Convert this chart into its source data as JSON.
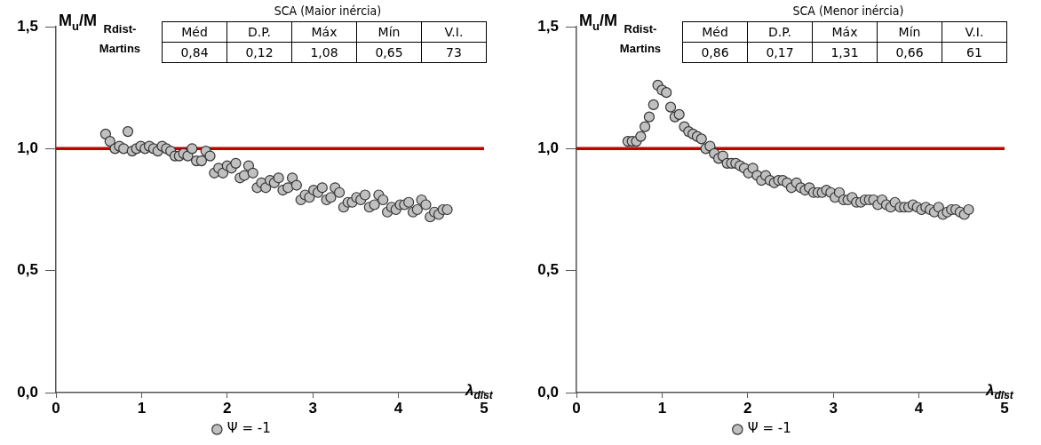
{
  "chart_data": [
    {
      "type": "scatter",
      "ylabel": "M$_{u}$/M$_{Rdist-Martins}$",
      "xlabel": "λ$_{dist}$",
      "xlim": [
        0,
        5
      ],
      "xticks": [
        0,
        1,
        2,
        3,
        4,
        5
      ],
      "ylim": [
        0,
        1.5
      ],
      "yticks": [
        {
          "value": 0,
          "label": "0,0"
        },
        {
          "value": 0.5,
          "label": "0,5"
        },
        {
          "value": 1,
          "label": "1,0"
        },
        {
          "value": 1.5,
          "label": "1,5"
        }
      ],
      "grid": false,
      "legend": "bottom",
      "marker": "circle",
      "ref_lines": [
        {
          "axis": "y",
          "value": 1,
          "color": "#c00000"
        }
      ],
      "annotations": [
        "SCA (Maior inércia)",
        "Méd",
        "D.P.",
        "Máx",
        "Mín",
        "V.I.",
        "0,84",
        "0,12",
        "1,08",
        "0,65",
        "73"
      ],
      "series": [
        {
          "name": "Ψ = -1",
          "color": "#c0c0c0",
          "x": [
            0.58,
            0.63,
            0.69,
            0.74,
            0.79,
            0.84,
            0.89,
            0.94,
            0.99,
            1.04,
            1.09,
            1.14,
            1.19,
            1.24,
            1.29,
            1.34,
            1.39,
            1.44,
            1.49,
            1.54,
            1.59,
            1.64,
            1.7,
            1.75,
            1.8,
            1.85,
            1.9,
            1.95,
            2.0,
            2.05,
            2.1,
            2.15,
            2.2,
            2.25,
            2.3,
            2.35,
            2.4,
            2.45,
            2.5,
            2.55,
            2.6,
            2.65,
            2.71,
            2.76,
            2.81,
            2.86,
            2.91,
            2.96,
            3.01,
            3.06,
            3.11,
            3.16,
            3.21,
            3.26,
            3.31,
            3.36,
            3.41,
            3.46,
            3.51,
            3.56,
            3.61,
            3.66,
            3.72,
            3.77,
            3.82,
            3.87,
            3.92,
            3.97,
            4.02,
            4.07,
            4.12,
            4.17,
            4.22,
            4.27,
            4.32,
            4.37,
            4.42,
            4.47,
            4.52,
            4.57
          ],
          "values": [
            1.06,
            1.03,
            1.0,
            1.01,
            1.0,
            1.07,
            0.99,
            1.0,
            1.01,
            1.0,
            1.01,
            1.0,
            0.99,
            1.01,
            1.0,
            0.99,
            0.97,
            0.97,
            0.98,
            0.97,
            1.0,
            0.95,
            0.95,
            0.99,
            0.97,
            0.9,
            0.92,
            0.9,
            0.93,
            0.92,
            0.94,
            0.88,
            0.89,
            0.93,
            0.9,
            0.84,
            0.86,
            0.84,
            0.87,
            0.86,
            0.88,
            0.83,
            0.84,
            0.88,
            0.85,
            0.79,
            0.81,
            0.8,
            0.83,
            0.82,
            0.84,
            0.79,
            0.8,
            0.84,
            0.82,
            0.76,
            0.78,
            0.78,
            0.8,
            0.79,
            0.81,
            0.76,
            0.77,
            0.81,
            0.79,
            0.74,
            0.76,
            0.75,
            0.77,
            0.77,
            0.78,
            0.74,
            0.75,
            0.79,
            0.77,
            0.72,
            0.74,
            0.73,
            0.75,
            0.75
          ]
        }
      ]
    },
    {
      "type": "scatter",
      "ylabel": "M$_{u}$/M$_{Rdist-Martins}$",
      "xlabel": "λ$_{dist}$",
      "xlim": [
        0,
        5
      ],
      "xticks": [
        0,
        1,
        2,
        3,
        4,
        5
      ],
      "ylim": [
        0,
        1.5
      ],
      "yticks": [
        {
          "value": 0,
          "label": "0,0"
        },
        {
          "value": 0.5,
          "label": "0,5"
        },
        {
          "value": 1,
          "label": "1,0"
        },
        {
          "value": 1.5,
          "label": "1,5"
        }
      ],
      "grid": false,
      "legend": "bottom",
      "marker": "circle",
      "ref_lines": [
        {
          "axis": "y",
          "value": 1,
          "color": "#c00000"
        }
      ],
      "annotations": [
        "SCA (Menor inércia)",
        "Méd",
        "D.P.",
        "Máx",
        "Mín",
        "V.I.",
        "0,86",
        "0,17",
        "1,31",
        "0,66",
        "61"
      ],
      "series": [
        {
          "name": "Ψ = -1",
          "color": "#c0c0c0",
          "x": [
            0.6,
            0.65,
            0.7,
            0.75,
            0.8,
            0.85,
            0.9,
            0.95,
            1.0,
            1.05,
            1.1,
            1.15,
            1.2,
            1.26,
            1.31,
            1.36,
            1.41,
            1.46,
            1.51,
            1.56,
            1.61,
            1.66,
            1.71,
            1.76,
            1.81,
            1.86,
            1.91,
            1.96,
            2.01,
            2.06,
            2.11,
            2.16,
            2.21,
            2.26,
            2.31,
            2.36,
            2.41,
            2.46,
            2.51,
            2.57,
            2.62,
            2.67,
            2.72,
            2.77,
            2.82,
            2.87,
            2.92,
            2.97,
            3.02,
            3.07,
            3.12,
            3.17,
            3.22,
            3.27,
            3.32,
            3.37,
            3.42,
            3.47,
            3.52,
            3.57,
            3.62,
            3.67,
            3.72,
            3.78,
            3.83,
            3.88,
            3.93,
            3.98,
            4.03,
            4.08,
            4.13,
            4.18,
            4.23,
            4.28,
            4.33,
            4.38,
            4.43,
            4.48,
            4.53,
            4.58
          ],
          "values": [
            1.03,
            1.03,
            1.03,
            1.05,
            1.09,
            1.13,
            1.18,
            1.26,
            1.24,
            1.23,
            1.17,
            1.13,
            1.14,
            1.09,
            1.07,
            1.06,
            1.05,
            1.04,
            1.0,
            1.01,
            0.98,
            0.96,
            0.97,
            0.94,
            0.94,
            0.94,
            0.93,
            0.92,
            0.9,
            0.92,
            0.89,
            0.87,
            0.89,
            0.87,
            0.86,
            0.87,
            0.87,
            0.86,
            0.84,
            0.86,
            0.84,
            0.83,
            0.84,
            0.82,
            0.82,
            0.82,
            0.83,
            0.82,
            0.8,
            0.82,
            0.79,
            0.79,
            0.8,
            0.78,
            0.78,
            0.79,
            0.79,
            0.79,
            0.77,
            0.79,
            0.77,
            0.76,
            0.78,
            0.76,
            0.76,
            0.76,
            0.77,
            0.76,
            0.75,
            0.76,
            0.75,
            0.74,
            0.76,
            0.73,
            0.74,
            0.75,
            0.75,
            0.74,
            0.73,
            0.75
          ]
        }
      ]
    }
  ]
}
